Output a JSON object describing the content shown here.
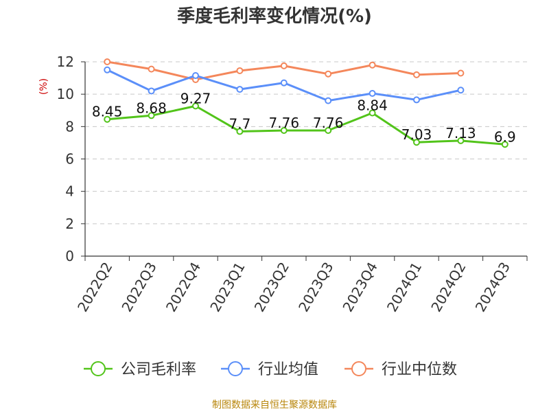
{
  "chart_data": {
    "type": "line",
    "title": "季度毛利率变化情况(%)",
    "ylabel": "(%)",
    "xlabel": "",
    "categories": [
      "2022Q2",
      "2022Q3",
      "2022Q4",
      "2023Q1",
      "2023Q2",
      "2023Q3",
      "2023Q4",
      "2024Q1",
      "2024Q2",
      "2024Q3"
    ],
    "ylim": [
      0,
      12
    ],
    "yticks": [
      0,
      2,
      4,
      6,
      8,
      10,
      12
    ],
    "grid": true,
    "legend_position": "bottom",
    "series": [
      {
        "name": "公司毛利率",
        "color": "#52c41a",
        "values": [
          8.45,
          8.68,
          9.27,
          7.7,
          7.76,
          7.76,
          8.84,
          7.03,
          7.13,
          6.9
        ],
        "labels": [
          "8.45",
          "8.68",
          "9.27",
          "7.7",
          "7.76",
          "7.76",
          "8.84",
          "7.03",
          "7.13",
          "6.9"
        ]
      },
      {
        "name": "行业均值",
        "color": "#5b8ff9",
        "values": [
          11.5,
          10.2,
          11.15,
          10.3,
          10.7,
          9.6,
          10.05,
          9.65,
          10.25,
          null
        ]
      },
      {
        "name": "行业中位数",
        "color": "#f4875b",
        "values": [
          12.0,
          11.55,
          10.9,
          11.45,
          11.75,
          11.25,
          11.8,
          11.2,
          11.3,
          null
        ]
      }
    ]
  },
  "source": "制图数据来自恒生聚源数据库"
}
